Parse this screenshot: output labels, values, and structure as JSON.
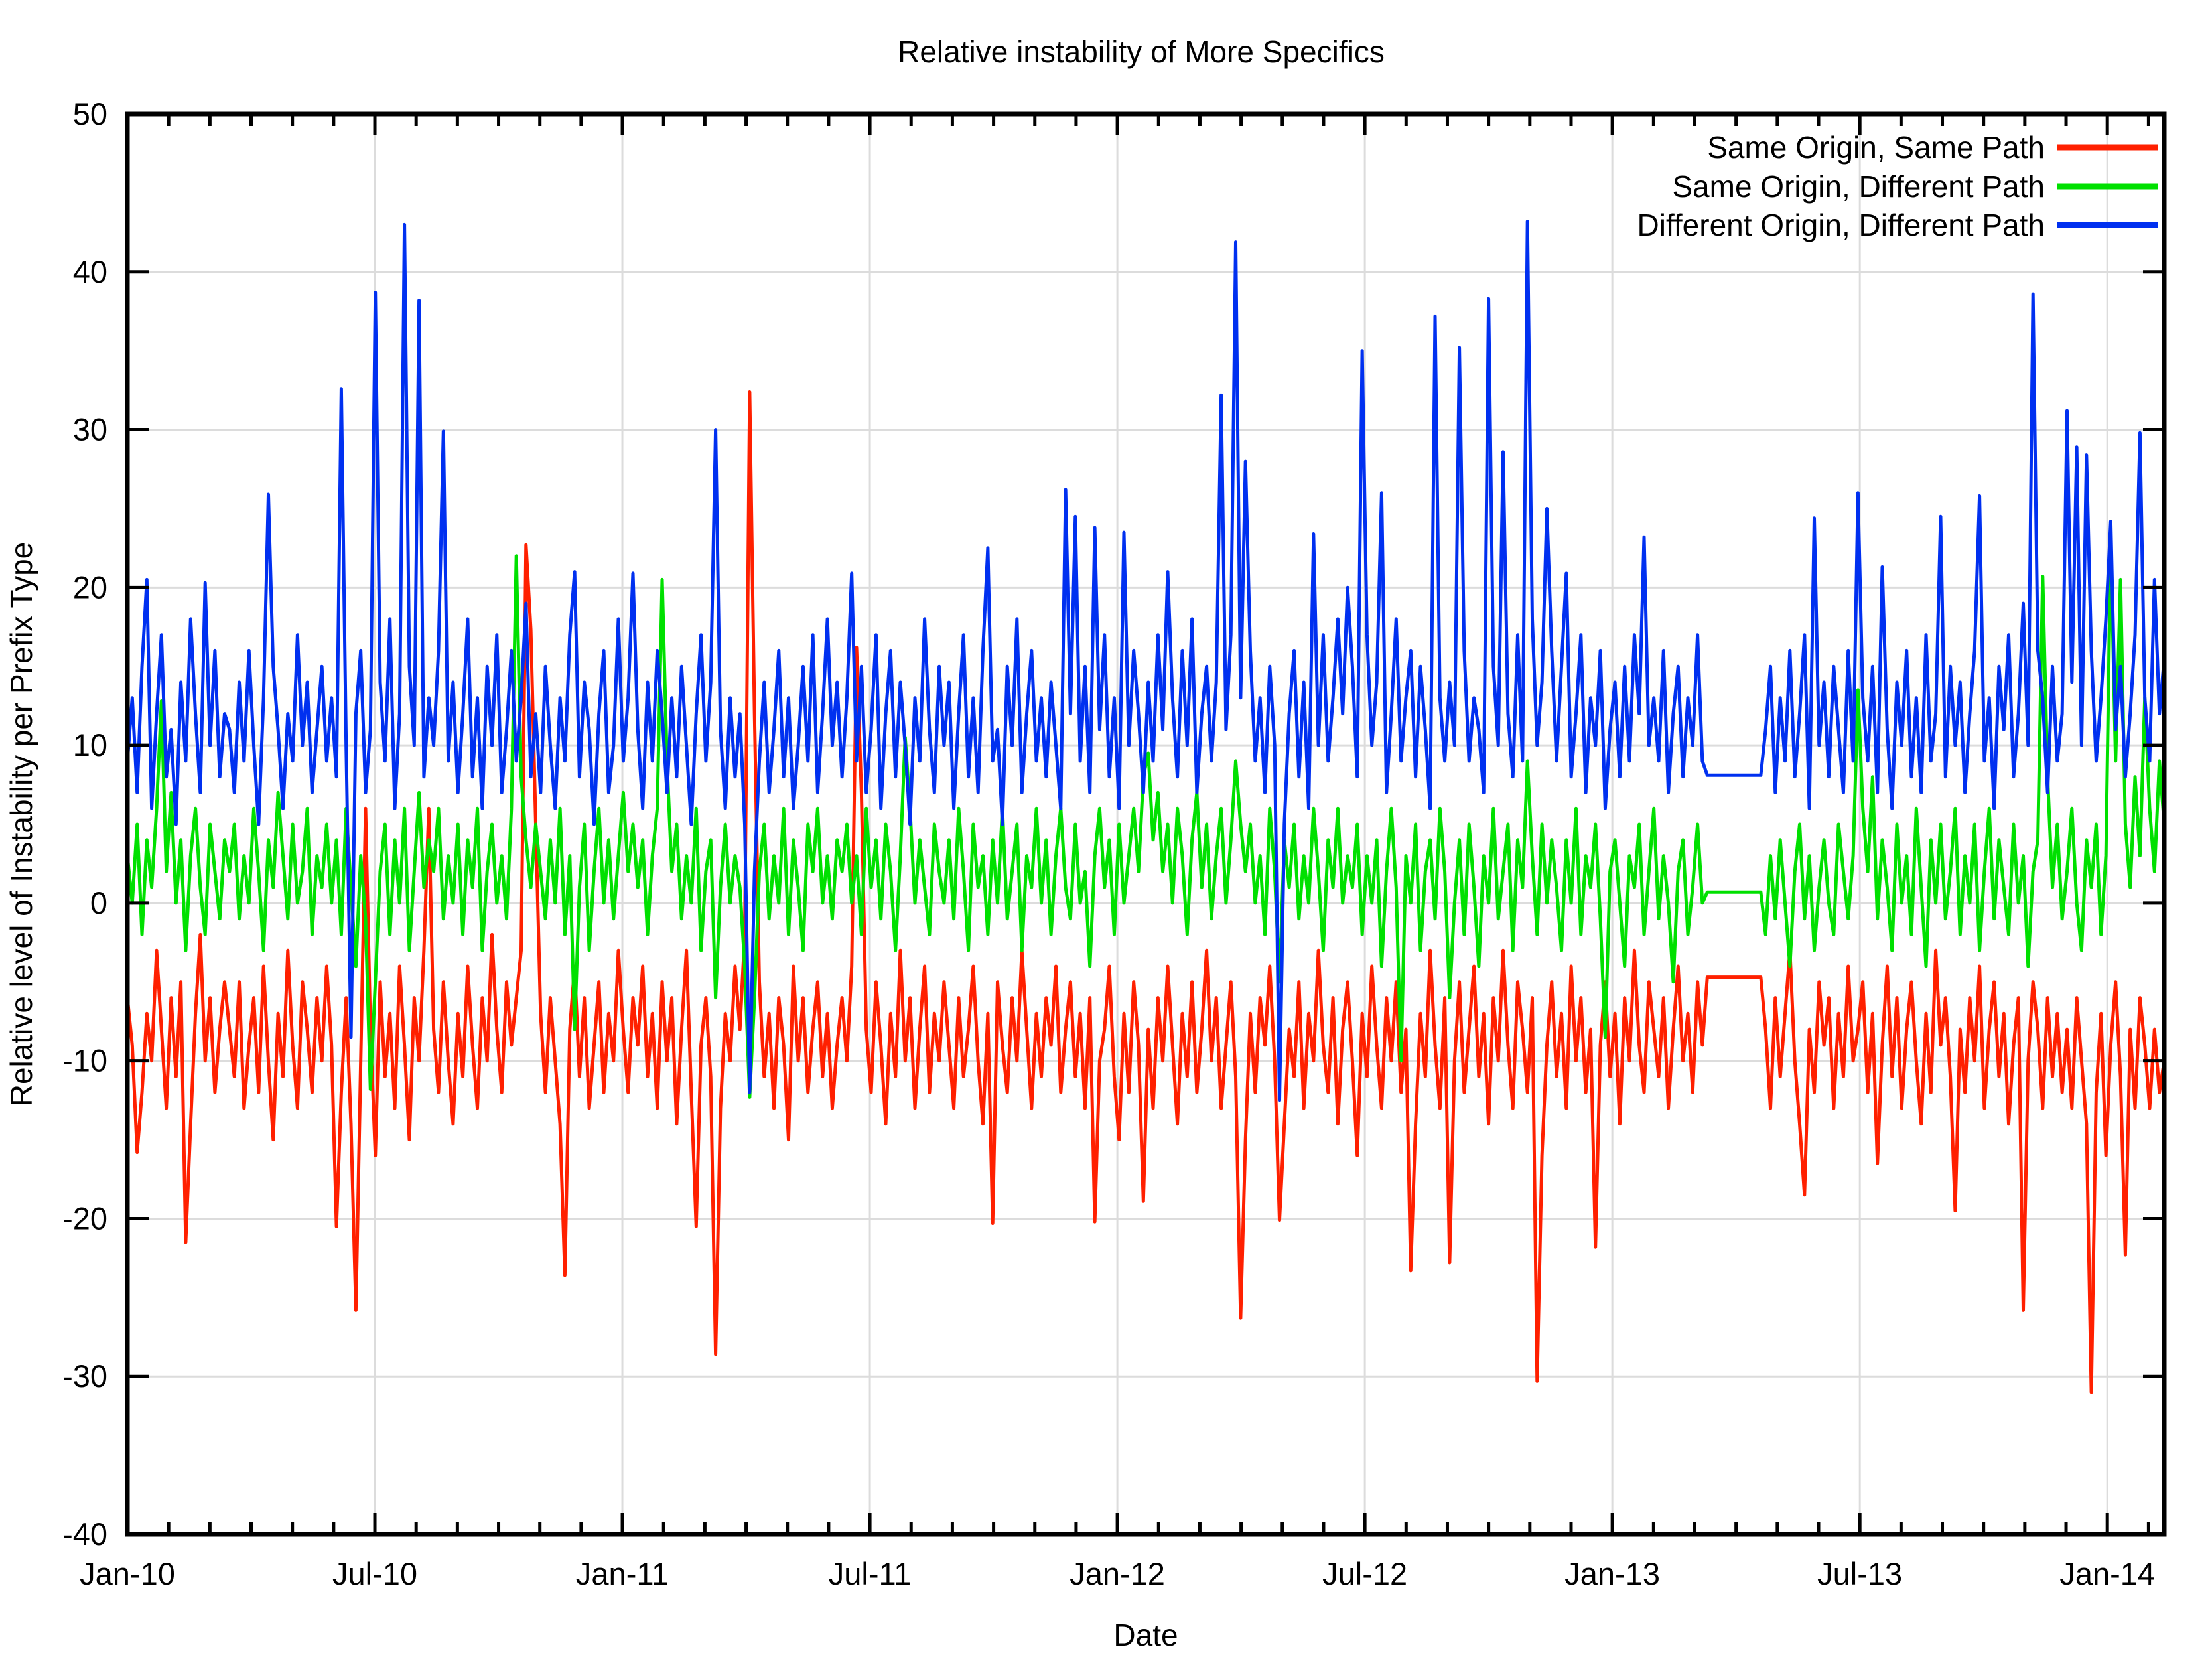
{
  "title": "Relative instability of More Specifics",
  "chart_data": {
    "type": "line",
    "title": "Relative instability of More Specifics",
    "xlabel": "Date",
    "ylabel": "Relative level of Instability per Prefix Type",
    "xlim": [
      2010.0,
      2014.115
    ],
    "ylim": [
      -40,
      50
    ],
    "grid": true,
    "grid_color": "#dcdcdc",
    "axis_color": "#000000",
    "background": "#ffffff",
    "legend_position": "top-right-inside",
    "x_ticks": [
      {
        "value": 2010.0,
        "label": "Jan-10"
      },
      {
        "value": 2010.5,
        "label": "Jul-10"
      },
      {
        "value": 2011.0,
        "label": "Jan-11"
      },
      {
        "value": 2011.5,
        "label": "Jul-11"
      },
      {
        "value": 2012.0,
        "label": "Jan-12"
      },
      {
        "value": 2012.5,
        "label": "Jul-12"
      },
      {
        "value": 2013.0,
        "label": "Jan-13"
      },
      {
        "value": 2013.5,
        "label": "Jul-13"
      },
      {
        "value": 2014.0,
        "label": "Jan-14"
      }
    ],
    "x_minor_step_years": 0.0833333,
    "y_ticks": [
      50,
      40,
      30,
      20,
      10,
      0,
      -10,
      -20,
      -30,
      -40
    ],
    "note_data_gap": "flat segments around Feb-Mar 2013 (blue 8.1, green 0.7, red -4.7)",
    "series": [
      {
        "name": "Same Origin, Same Path",
        "color": "#ff2000",
        "values": [
          -6,
          -9,
          -15.8,
          -12,
          -7,
          -10,
          -3,
          -8,
          -13,
          -6,
          -11,
          -5,
          -21.5,
          -14,
          -7,
          -2,
          -10,
          -6,
          -12,
          -8,
          -5,
          -8,
          -11,
          -5,
          -13,
          -9,
          -6,
          -12,
          -4,
          -10,
          -15,
          -7,
          -11,
          -3,
          -9,
          -13,
          -5,
          -8,
          -12,
          -6,
          -10,
          -4,
          -9,
          -20.5,
          -12,
          -6,
          -14,
          -25.8,
          -10,
          6,
          -8,
          -16,
          -5,
          -11,
          -7,
          -13,
          -4,
          -9,
          -15,
          -6,
          -10,
          -3,
          6,
          -8,
          -12,
          -5,
          -10,
          -14,
          -7,
          -11,
          -4,
          -9,
          -13,
          -6,
          -10,
          -2,
          -8,
          -12,
          -5,
          -9,
          -6,
          -3,
          22.7,
          17.3,
          5,
          -7,
          -12,
          -6,
          -10,
          -14,
          -23.6,
          -8,
          -4,
          -11,
          -6,
          -13,
          -9,
          -5,
          -12,
          -7,
          -10,
          -3,
          -8,
          -12,
          -6,
          -9,
          -4,
          -11,
          -7,
          -13,
          -5,
          -10,
          -6,
          -14,
          -8,
          -3,
          -12,
          -20.5,
          -9,
          -6,
          -11,
          -28.6,
          -13,
          -7,
          -10,
          -4,
          -8,
          -2,
          32.4,
          12,
          -5,
          -11,
          -7,
          -13,
          -6,
          -9,
          -15,
          -4,
          -10,
          -6,
          -12,
          -8,
          -5,
          -11,
          -7,
          -13,
          -9,
          -6,
          -10,
          -4,
          16.2,
          7,
          -8,
          -12,
          -5,
          -9,
          -14,
          -7,
          -11,
          -3,
          -10,
          -6,
          -13,
          -8,
          -4,
          -12,
          -7,
          -10,
          -5,
          -9,
          -13,
          -6,
          -11,
          -8,
          -4,
          -10,
          -14,
          -7,
          -20.3,
          -5,
          -9,
          -12,
          -6,
          -10,
          -3,
          -8,
          -13,
          -7,
          -11,
          -6,
          -9,
          -4,
          -12,
          -8,
          -5,
          -11,
          -7,
          -13,
          -6,
          -20.2,
          -10,
          -8,
          -4,
          -11,
          -15,
          -7,
          -12,
          -5,
          -9,
          -18.9,
          -8,
          -13,
          -6,
          -10,
          -4,
          -9,
          -14,
          -7,
          -11,
          -5,
          -12,
          -8,
          -3,
          -10,
          -6,
          -13,
          -9,
          -5,
          -11,
          -26.3,
          -15,
          -7,
          -12,
          -6,
          -9,
          -4,
          -10,
          -20.1,
          -14,
          -8,
          -11,
          -5,
          -13,
          -7,
          -10,
          -3,
          -9,
          -12,
          -6,
          -14,
          -8,
          -5,
          -10,
          -16,
          -7,
          -11,
          -4,
          -9,
          -13,
          -6,
          -10,
          -5,
          -12,
          -8,
          -23.3,
          -14,
          -7,
          -11,
          -3,
          -9,
          -13,
          -6,
          -22.8,
          -10,
          -5,
          -12,
          -8,
          -4,
          -11,
          -7,
          -14,
          -6,
          -10,
          -3,
          -9,
          -13,
          -5,
          -8,
          -12,
          -6,
          -30.3,
          -16,
          -9,
          -5,
          -11,
          -7,
          -13,
          -4,
          -10,
          -6,
          -12,
          -8,
          -21.8,
          -9,
          -5,
          -11,
          -7,
          -14,
          -6,
          -10,
          -3,
          -9,
          -12,
          -5,
          -8,
          -11,
          -6,
          -13,
          -8,
          -4,
          -10,
          -7,
          -12,
          -5,
          -9,
          -4.7,
          -4.7,
          -4.7,
          -4.7,
          -4.7,
          -4.7,
          -4.7,
          -4.7,
          -4.7,
          -4.7,
          -4.7,
          -4.7,
          -8,
          -13,
          -6,
          -11,
          -7,
          -3,
          -10,
          -14,
          -18.5,
          -8,
          -12,
          -5,
          -9,
          -6,
          -13,
          -7,
          -11,
          -4,
          -10,
          -8,
          -5,
          -12,
          -7,
          -16.5,
          -9,
          -4,
          -11,
          -6,
          -13,
          -8,
          -5,
          -10,
          -14,
          -7,
          -12,
          -3,
          -9,
          -6,
          -11,
          -19.5,
          -8,
          -12,
          -6,
          -10,
          -4,
          -13,
          -8,
          -5,
          -11,
          -7,
          -14,
          -9,
          -6,
          -25.8,
          -10,
          -5,
          -8,
          -13,
          -6,
          -11,
          -7,
          -12,
          -8,
          -13,
          -6,
          -10,
          -14,
          -31,
          -12,
          -7,
          -16,
          -9,
          -5,
          -11,
          -22.3,
          -8,
          -13,
          -6,
          -9,
          -13,
          -8,
          -12,
          -10
        ]
      },
      {
        "name": "Same Origin, Different Path",
        "color": "#00e000",
        "values": [
          3,
          0,
          5,
          -2,
          4,
          1,
          6,
          12.8,
          2,
          7,
          0,
          4,
          -3,
          3,
          6,
          1,
          -2,
          5,
          2,
          -1,
          4,
          2,
          5,
          -1,
          3,
          0,
          6,
          2,
          -3,
          4,
          1,
          7,
          3,
          -1,
          5,
          0,
          2,
          6,
          -2,
          3,
          1,
          5,
          0,
          4,
          -2,
          6,
          1,
          -4,
          3,
          -1,
          -11.8,
          -5,
          2,
          5,
          -2,
          4,
          0,
          6,
          -3,
          2,
          7,
          1,
          4,
          2,
          6,
          -1,
          3,
          0,
          5,
          -2,
          4,
          1,
          6,
          -3,
          2,
          5,
          0,
          3,
          -1,
          6,
          22,
          8,
          4,
          1,
          5,
          2,
          -1,
          4,
          0,
          6,
          -2,
          3,
          -8,
          1,
          5,
          -3,
          2,
          6,
          0,
          4,
          -1,
          3,
          7,
          2,
          5,
          1,
          4,
          -2,
          3,
          6,
          20.5,
          9,
          2,
          5,
          -1,
          3,
          0,
          6,
          -3,
          2,
          4,
          -6,
          1,
          5,
          0,
          3,
          1,
          -4,
          -12.3,
          -6,
          2,
          5,
          -1,
          3,
          0,
          6,
          -2,
          4,
          1,
          -3,
          5,
          2,
          6,
          0,
          3,
          -1,
          4,
          2,
          5,
          0,
          3,
          -2,
          6,
          1,
          4,
          -1,
          5,
          2,
          -3,
          3,
          10.5,
          6,
          0,
          4,
          1,
          -2,
          5,
          2,
          0,
          4,
          -1,
          6,
          2,
          -3,
          5,
          1,
          3,
          -2,
          4,
          0,
          6,
          -1,
          2,
          5,
          -3,
          3,
          1,
          6,
          0,
          4,
          -2,
          3,
          6,
          1,
          -1,
          5,
          0,
          2,
          -4,
          3,
          6,
          1,
          4,
          -2,
          5,
          0,
          3,
          6,
          2,
          8,
          9.5,
          4,
          7,
          2,
          5,
          0,
          6,
          3,
          -2,
          4,
          7,
          1,
          5,
          -1,
          3,
          6,
          0,
          4,
          9,
          5,
          2,
          5,
          0,
          3,
          -2,
          6,
          2,
          -5,
          4,
          1,
          5,
          -1,
          3,
          0,
          6,
          2,
          -3,
          4,
          1,
          6,
          0,
          3,
          1,
          5,
          -2,
          3,
          0,
          4,
          -4,
          2,
          6,
          1,
          -10,
          3,
          0,
          5,
          -3,
          2,
          4,
          -1,
          6,
          2,
          -6,
          0,
          4,
          -2,
          5,
          1,
          -4,
          3,
          0,
          6,
          -1,
          2,
          5,
          -3,
          4,
          1,
          9,
          3,
          -2,
          5,
          0,
          4,
          1,
          -3,
          4,
          0,
          6,
          -2,
          3,
          1,
          5,
          -1,
          -8.5,
          2,
          4,
          0,
          -4,
          3,
          1,
          5,
          -2,
          2,
          6,
          -1,
          3,
          0,
          -5,
          2,
          4,
          -2,
          1,
          5,
          0,
          0.7,
          0.7,
          0.7,
          0.7,
          0.7,
          0.7,
          0.7,
          0.7,
          0.7,
          0.7,
          0.7,
          0.7,
          -2,
          3,
          -1,
          4,
          0,
          -4,
          2,
          5,
          -1,
          3,
          -3,
          1,
          4,
          0,
          -2,
          5,
          2,
          -1,
          3,
          13.5,
          6,
          2,
          8,
          -1,
          4,
          1,
          -3,
          5,
          0,
          3,
          -2,
          6,
          1,
          -4,
          4,
          0,
          5,
          -1,
          2,
          6,
          -2,
          3,
          0,
          5,
          -3,
          2,
          6,
          -1,
          4,
          1,
          -2,
          5,
          0,
          3,
          -4,
          2,
          4,
          20.7,
          8,
          1,
          5,
          -1,
          2,
          6,
          0,
          -3,
          4,
          1,
          5,
          -2,
          3,
          22.9,
          9,
          20.5,
          5,
          1,
          8,
          3,
          13,
          6,
          2,
          9,
          5
        ]
      },
      {
        "name": "Different Origin, Different Path",
        "color": "#0030f0",
        "values": [
          9,
          13,
          7,
          15,
          20.5,
          6,
          12,
          17,
          8,
          11,
          5,
          14,
          9,
          18,
          12,
          7,
          20.3,
          10,
          16,
          8,
          12,
          11,
          7,
          14,
          9,
          16,
          10,
          5,
          13,
          25.9,
          15,
          11,
          6,
          12,
          9,
          17,
          10,
          14,
          7,
          11,
          15,
          9,
          13,
          8,
          32.6,
          10,
          -8.5,
          12,
          16,
          7,
          11,
          38.7,
          14,
          9,
          18,
          6,
          12,
          43,
          15,
          10,
          38.2,
          8,
          13,
          10,
          16,
          29.9,
          9,
          14,
          7,
          12,
          18,
          8,
          13,
          6,
          15,
          10,
          17,
          7,
          11,
          16,
          9,
          13,
          19,
          8,
          12,
          7,
          15,
          10,
          6,
          13,
          9,
          17,
          21,
          8,
          14,
          11,
          5,
          12,
          16,
          7,
          10,
          18,
          9,
          13,
          20.9,
          11,
          6,
          14,
          9,
          16,
          12,
          7,
          13,
          8,
          15,
          10,
          5,
          12,
          17,
          9,
          14,
          30,
          11,
          6,
          13,
          8,
          12,
          5,
          -12,
          2,
          9,
          14,
          7,
          11,
          16,
          8,
          13,
          6,
          10,
          15,
          9,
          17,
          7,
          12,
          18,
          10,
          14,
          8,
          13,
          20.9,
          9,
          15,
          7,
          11,
          17,
          6,
          12,
          16,
          8,
          14,
          10,
          5,
          13,
          9,
          18,
          11,
          7,
          15,
          10,
          14,
          6,
          12,
          17,
          8,
          13,
          7,
          16,
          22.5,
          9,
          11,
          5,
          15,
          10,
          18,
          7,
          12,
          16,
          9,
          13,
          8,
          14,
          10,
          6,
          26.2,
          12,
          24.5,
          9,
          15,
          7,
          23.8,
          11,
          17,
          8,
          13,
          6,
          23.5,
          10,
          16,
          12,
          7,
          14,
          9,
          17,
          11,
          21,
          13,
          8,
          16,
          10,
          18,
          7,
          12,
          15,
          9,
          14,
          32.2,
          11,
          17,
          41.9,
          13,
          28,
          16,
          9,
          13,
          7,
          15,
          10,
          -12.5,
          5,
          12,
          16,
          8,
          14,
          6,
          23.4,
          10,
          17,
          9,
          13,
          18,
          12,
          20,
          15,
          8,
          35,
          17,
          10,
          14,
          26,
          7,
          12,
          18,
          9,
          13,
          16,
          8,
          15,
          11,
          6,
          37.2,
          13,
          9,
          14,
          10,
          35.2,
          16,
          9,
          13,
          11,
          7,
          38.3,
          15,
          10,
          28.6,
          12,
          8,
          17,
          9,
          43.2,
          18,
          10,
          14,
          25,
          16,
          9,
          15,
          20.9,
          8,
          12,
          17,
          7,
          13,
          10,
          16,
          6,
          11,
          14,
          8,
          15,
          9,
          17,
          12,
          23.2,
          10,
          13,
          9,
          16,
          7,
          12,
          15,
          8,
          13,
          10,
          17,
          9,
          8.1,
          8.1,
          8.1,
          8.1,
          8.1,
          8.1,
          8.1,
          8.1,
          8.1,
          8.1,
          8.1,
          8.1,
          11,
          15,
          7,
          13,
          9,
          16,
          8,
          12,
          17,
          6,
          24.4,
          10,
          14,
          8,
          15,
          11,
          7,
          16,
          9,
          26,
          13,
          9,
          15,
          7,
          21.3,
          11,
          6,
          14,
          10,
          16,
          8,
          13,
          7,
          17,
          9,
          12,
          24.5,
          8,
          15,
          10,
          14,
          7,
          12,
          16,
          25.8,
          9,
          13,
          6,
          15,
          11,
          17,
          8,
          12,
          19,
          10,
          38.6,
          16,
          13,
          7,
          15,
          9,
          12,
          31.2,
          14,
          28.9,
          10,
          28.4,
          16,
          9,
          13,
          18,
          24.2,
          11,
          15,
          8,
          12,
          17,
          29.8,
          13,
          9,
          20.5,
          12,
          15.5
        ]
      }
    ]
  }
}
